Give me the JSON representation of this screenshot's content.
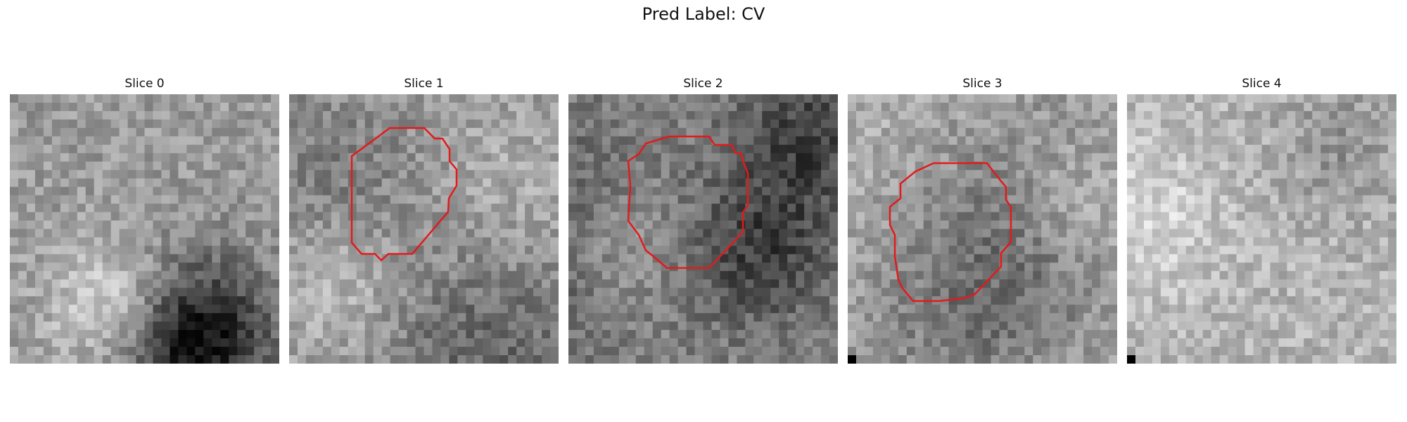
{
  "figure": {
    "title": "Pred Label: CV"
  },
  "panels": [
    {
      "title": "Slice 0",
      "has_contour": false,
      "corner_marker": false,
      "tone": {
        "base": 155,
        "contrast": 85,
        "dark_blobs": 2,
        "light_blobs": 1
      }
    },
    {
      "title": "Slice 1",
      "has_contour": true,
      "corner_marker": false,
      "contour_color": "#e31a1c",
      "tone": {
        "base": 150,
        "contrast": 90,
        "dark_blobs": 2,
        "light_blobs": 2
      }
    },
    {
      "title": "Slice 2",
      "has_contour": true,
      "corner_marker": false,
      "contour_color": "#e31a1c",
      "tone": {
        "base": 135,
        "contrast": 70,
        "dark_blobs": 3,
        "light_blobs": 1
      }
    },
    {
      "title": "Slice 3",
      "has_contour": true,
      "corner_marker": true,
      "contour_color": "#e31a1c",
      "tone": {
        "base": 175,
        "contrast": 55,
        "dark_blobs": 2,
        "light_blobs": 1
      }
    },
    {
      "title": "Slice 4",
      "has_contour": false,
      "corner_marker": true,
      "tone": {
        "base": 180,
        "contrast": 35,
        "dark_blobs": 1,
        "light_blobs": 1
      }
    }
  ]
}
